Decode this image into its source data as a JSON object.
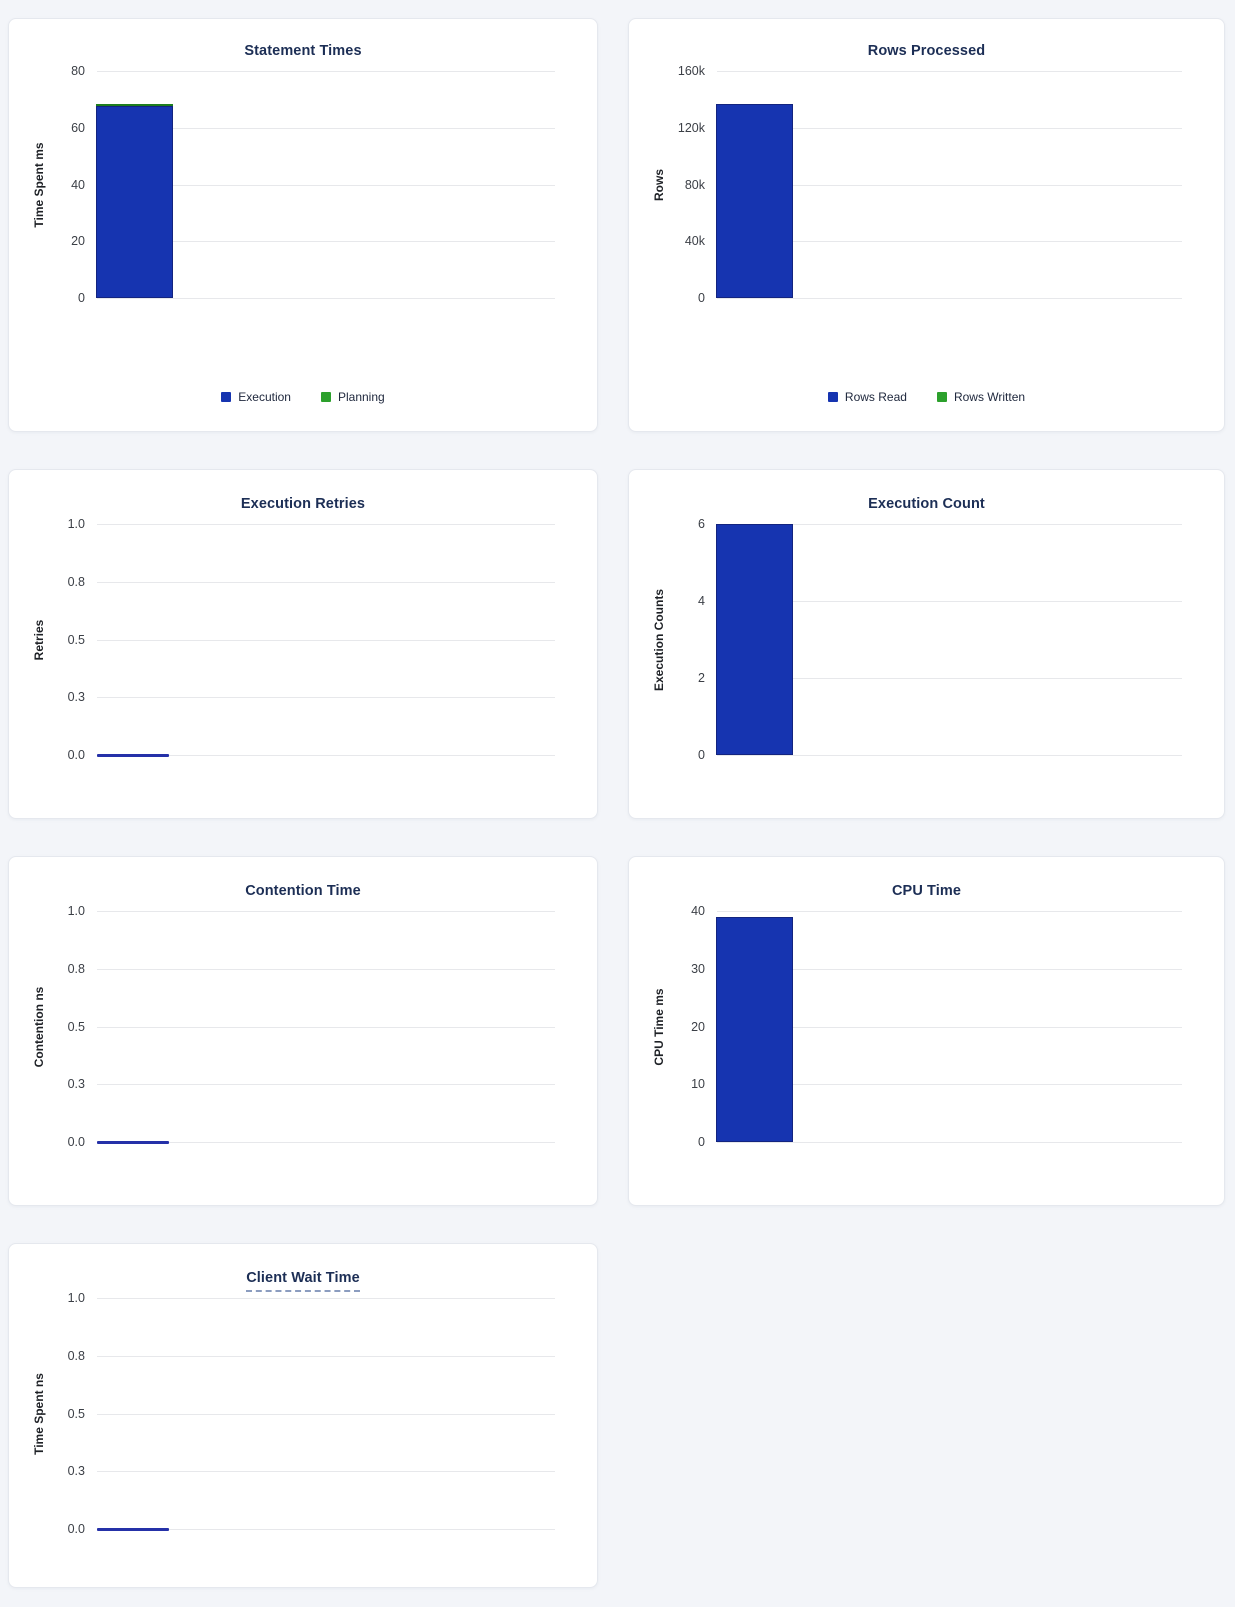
{
  "page": {
    "background": "#F3F5F9"
  },
  "colors": {
    "card_bg": "#FFFFFF",
    "card_border": "#E5E8EE",
    "title": "#1C2E55",
    "grid": "#E7E8EB",
    "tick": "#3B3F46",
    "axis_label": "#1E2126",
    "legend_text": "#20293E",
    "bar_blue": "#1634B0",
    "bar_blue_edge": "#13247F",
    "bar_green": "#2CA02C",
    "bar_green_edge": "#1E7E1E",
    "zero_line": "#2531A8"
  },
  "chart_data": [
    {
      "type": "bar",
      "title": "Statement Times",
      "ylabel": "Time Spent ms",
      "ylim": [
        0,
        80
      ],
      "ytick_labels": [
        "0",
        "20",
        "40",
        "60",
        "80"
      ],
      "grid": true,
      "legend_position": "bottom",
      "show_legend": true,
      "title_tooltip_underline": false,
      "series": [
        {
          "name": "Execution",
          "value": 67.5,
          "color": "blue"
        },
        {
          "name": "Planning",
          "value": 0.8,
          "color": "green"
        }
      ]
    },
    {
      "type": "bar",
      "title": "Rows Processed",
      "ylabel": "Rows",
      "ylim": [
        0,
        160000
      ],
      "ytick_labels": [
        "0",
        "40k",
        "80k",
        "120k",
        "160k"
      ],
      "grid": true,
      "legend_position": "bottom",
      "show_legend": true,
      "title_tooltip_underline": false,
      "series": [
        {
          "name": "Rows Read",
          "value": 137000,
          "color": "blue"
        },
        {
          "name": "Rows Written",
          "value": 0,
          "color": "green"
        }
      ]
    },
    {
      "type": "bar",
      "title": "Execution Retries",
      "ylabel": "Retries",
      "ylim": [
        0,
        1
      ],
      "ytick_labels": [
        "0.0",
        "0.3",
        "0.5",
        "0.8",
        "1.0"
      ],
      "grid": true,
      "show_legend": false,
      "title_tooltip_underline": false,
      "series": [
        {
          "value": 0,
          "color": "blue"
        }
      ]
    },
    {
      "type": "bar",
      "title": "Execution Count",
      "ylabel": "Execution Counts",
      "ylim": [
        0,
        6
      ],
      "ytick_labels": [
        "0",
        "2",
        "4",
        "6"
      ],
      "grid": true,
      "show_legend": false,
      "title_tooltip_underline": false,
      "series": [
        {
          "value": 6,
          "color": "blue"
        }
      ]
    },
    {
      "type": "bar",
      "title": "Contention Time",
      "ylabel": "Contention ns",
      "ylim": [
        0,
        1
      ],
      "ytick_labels": [
        "0.0",
        "0.3",
        "0.5",
        "0.8",
        "1.0"
      ],
      "grid": true,
      "show_legend": false,
      "title_tooltip_underline": false,
      "series": [
        {
          "value": 0,
          "color": "blue"
        }
      ]
    },
    {
      "type": "bar",
      "title": "CPU Time",
      "ylabel": "CPU Time ms",
      "ylim": [
        0,
        40
      ],
      "ytick_labels": [
        "0",
        "10",
        "20",
        "30",
        "40"
      ],
      "grid": true,
      "show_legend": false,
      "title_tooltip_underline": false,
      "series": [
        {
          "value": 39,
          "color": "blue"
        }
      ]
    },
    {
      "type": "bar",
      "title": "Client Wait Time",
      "ylabel": "Time Spent ns",
      "ylim": [
        0,
        1
      ],
      "ytick_labels": [
        "0.0",
        "0.3",
        "0.5",
        "0.8",
        "1.0"
      ],
      "grid": true,
      "show_legend": false,
      "title_tooltip_underline": true,
      "series": [
        {
          "value": 0,
          "color": "blue"
        }
      ]
    }
  ]
}
